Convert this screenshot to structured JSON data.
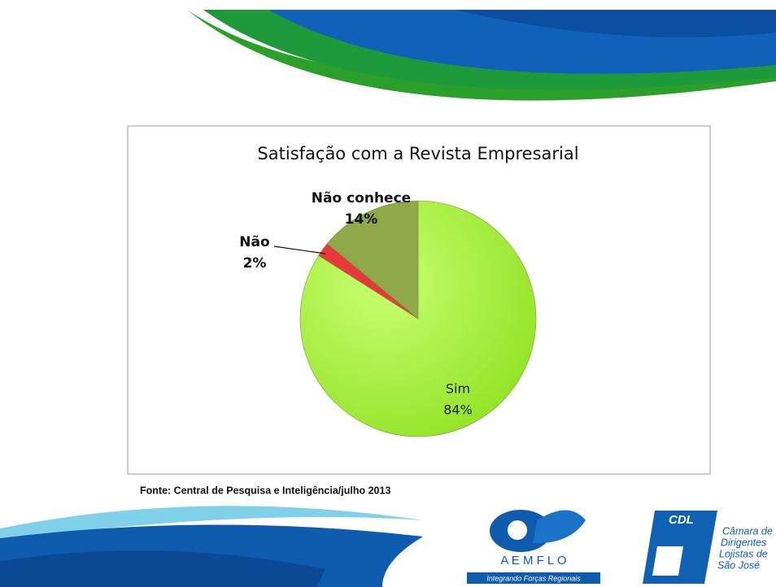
{
  "chart_data": {
    "type": "pie",
    "title": "Satisfação com a Revista Empresarial",
    "categories": [
      "Sim",
      "Não",
      "Não conhece"
    ],
    "values": [
      84,
      2,
      14
    ],
    "value_labels": [
      "84%",
      "2%",
      "14%"
    ],
    "colors": [
      "#a6f43c",
      "#e8383a",
      "#8ea84a"
    ]
  },
  "source": "Fonte: Central de Pesquisa e Inteligência/julho 2013",
  "logos": {
    "aemflo": {
      "name": "A E M F L O",
      "tagline": "Integrando Forças Regionais"
    },
    "cdl": {
      "name": "CDL",
      "lines": [
        "Câmara de",
        "Dirigentes",
        "Lojistas de",
        "São José"
      ]
    }
  }
}
